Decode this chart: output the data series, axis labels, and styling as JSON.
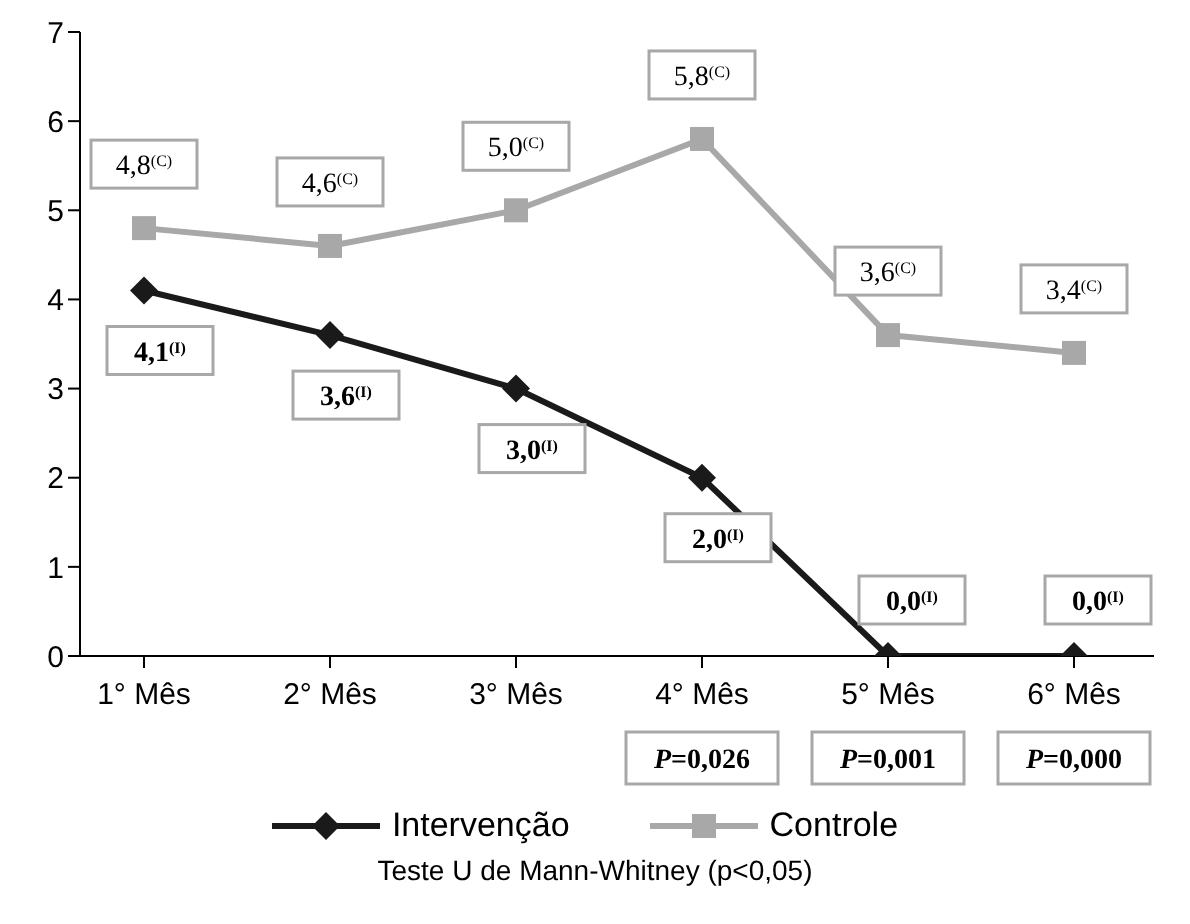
{
  "chart_data": {
    "type": "line",
    "categories": [
      "1° Mês",
      "2° Mês",
      "3° Mês",
      "4° Mês",
      "5° Mês",
      "6° Mês"
    ],
    "series": [
      {
        "name": "Intervenção",
        "color": "#1a1a1a",
        "marker": "diamond",
        "values": [
          4.1,
          3.6,
          3.0,
          2.0,
          0,
          0
        ],
        "value_labels": [
          "4,1$^{(I)}$",
          "3,6$^{(I)}$",
          "3,0$^{(I)}$",
          "2,0$^{(I)}$",
          "0,0$^{(I)}$",
          "0,0$^{(I)}$"
        ]
      },
      {
        "name": "Controle",
        "color": "#a8a8a8",
        "marker": "square",
        "values": [
          4.8,
          4.6,
          5.0,
          5.8,
          3.6,
          3.4
        ],
        "value_labels": [
          "4,8$^{(C)}$",
          "4,6$^{(C)}$",
          "5,0$^{(C)}$",
          "5,8$^{(C)}$",
          "3,6$^{(C)}$",
          "3,4$^{(C)}$"
        ]
      }
    ],
    "ylim": [
      0,
      7
    ],
    "yticks": [
      0,
      1,
      2,
      3,
      4,
      5,
      6,
      7
    ],
    "grid": false,
    "legend": "bottom",
    "line_style": "solid",
    "annotations": [
      "P=0,026",
      "P=0,001",
      "P=0,000",
      "Teste U de Mann-Whitney (p<0,05)"
    ]
  }
}
